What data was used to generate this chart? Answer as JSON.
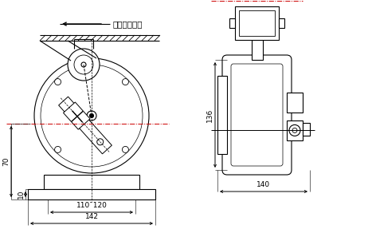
{
  "bg_color": "#ffffff",
  "line_color": "#000000",
  "fig_width": 4.67,
  "fig_height": 2.92,
  "dpi": 100,
  "label_jiaodai": "胶带运行方向",
  "dim_70": "70",
  "dim_10": "10",
  "dim_110_120": "110¯120",
  "dim_142": "142",
  "dim_136": "136",
  "dim_140": "140",
  "dash_color": "#cc0000"
}
